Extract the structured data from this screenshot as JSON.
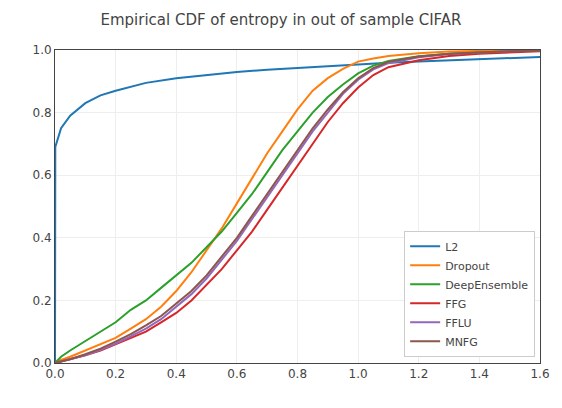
{
  "chart_data": {
    "type": "line",
    "title": "Empirical CDF of entropy in out of sample CIFAR",
    "xlim": [
      0.0,
      1.6
    ],
    "ylim": [
      0.0,
      1.0
    ],
    "xticks": [
      {
        "value": 0,
        "label": "0.0"
      },
      0.2,
      0.4,
      0.6,
      0.8,
      {
        "value": 1,
        "label": "1.0"
      },
      1.2,
      1.4,
      1.6
    ],
    "yticks": [
      {
        "value": 0,
        "label": "0.0"
      },
      0.2,
      0.4,
      0.6,
      0.8,
      {
        "value": 1,
        "label": "1.0"
      }
    ],
    "grid": true,
    "legend": "lower right",
    "series": [
      {
        "name": "L2",
        "x": [
          0.0,
          0.001,
          0.02,
          0.05,
          0.1,
          0.15,
          0.2,
          0.3,
          0.4,
          0.5,
          0.6,
          0.7,
          0.8,
          0.9,
          1.0,
          1.1,
          1.2,
          1.3,
          1.4,
          1.5,
          1.6
        ],
        "values": [
          0.0,
          0.69,
          0.75,
          0.79,
          0.83,
          0.855,
          0.87,
          0.895,
          0.91,
          0.92,
          0.93,
          0.937,
          0.943,
          0.949,
          0.954,
          0.959,
          0.963,
          0.967,
          0.971,
          0.975,
          0.978
        ]
      },
      {
        "name": "Dropout",
        "x": [
          0.0,
          0.02,
          0.05,
          0.1,
          0.15,
          0.2,
          0.25,
          0.3,
          0.35,
          0.4,
          0.45,
          0.5,
          0.55,
          0.6,
          0.65,
          0.7,
          0.75,
          0.8,
          0.85,
          0.9,
          0.95,
          1.0,
          1.05,
          1.1,
          1.2,
          1.3,
          1.4,
          1.5,
          1.6
        ],
        "values": [
          0.0,
          0.01,
          0.02,
          0.04,
          0.06,
          0.08,
          0.11,
          0.14,
          0.18,
          0.23,
          0.29,
          0.36,
          0.43,
          0.51,
          0.59,
          0.67,
          0.74,
          0.81,
          0.87,
          0.91,
          0.94,
          0.963,
          0.973,
          0.981,
          0.99,
          0.995,
          0.997,
          0.998,
          0.999
        ]
      },
      {
        "name": "DeepEnsemble",
        "x": [
          0.0,
          0.02,
          0.05,
          0.1,
          0.15,
          0.2,
          0.25,
          0.3,
          0.35,
          0.4,
          0.45,
          0.5,
          0.55,
          0.6,
          0.65,
          0.7,
          0.75,
          0.8,
          0.85,
          0.9,
          0.95,
          1.0,
          1.05,
          1.1,
          1.2,
          1.3,
          1.4,
          1.5,
          1.6
        ],
        "values": [
          0.0,
          0.02,
          0.04,
          0.07,
          0.1,
          0.13,
          0.17,
          0.2,
          0.24,
          0.28,
          0.32,
          0.37,
          0.42,
          0.48,
          0.54,
          0.61,
          0.68,
          0.74,
          0.8,
          0.85,
          0.89,
          0.925,
          0.95,
          0.965,
          0.98,
          0.988,
          0.993,
          0.996,
          0.998
        ]
      },
      {
        "name": "FFG",
        "x": [
          0.0,
          0.02,
          0.05,
          0.1,
          0.15,
          0.2,
          0.25,
          0.3,
          0.35,
          0.4,
          0.45,
          0.5,
          0.55,
          0.6,
          0.65,
          0.7,
          0.75,
          0.8,
          0.85,
          0.9,
          0.95,
          1.0,
          1.05,
          1.1,
          1.2,
          1.3,
          1.4,
          1.5,
          1.6
        ],
        "values": [
          0.0,
          0.005,
          0.012,
          0.025,
          0.04,
          0.06,
          0.08,
          0.1,
          0.13,
          0.16,
          0.2,
          0.25,
          0.3,
          0.36,
          0.42,
          0.49,
          0.56,
          0.63,
          0.7,
          0.77,
          0.83,
          0.88,
          0.92,
          0.945,
          0.967,
          0.981,
          0.988,
          0.993,
          0.996
        ]
      },
      {
        "name": "FFLU",
        "x": [
          0.0,
          0.02,
          0.05,
          0.1,
          0.15,
          0.2,
          0.25,
          0.3,
          0.35,
          0.4,
          0.45,
          0.5,
          0.55,
          0.6,
          0.65,
          0.7,
          0.75,
          0.8,
          0.85,
          0.9,
          0.95,
          1.0,
          1.05,
          1.1,
          1.2,
          1.3,
          1.4,
          1.5,
          1.6
        ],
        "values": [
          0.0,
          0.005,
          0.012,
          0.025,
          0.042,
          0.062,
          0.085,
          0.11,
          0.14,
          0.18,
          0.22,
          0.27,
          0.33,
          0.39,
          0.46,
          0.53,
          0.6,
          0.67,
          0.74,
          0.8,
          0.86,
          0.905,
          0.938,
          0.958,
          0.977,
          0.987,
          0.992,
          0.996,
          0.998
        ]
      },
      {
        "name": "MNFG",
        "x": [
          0.0,
          0.02,
          0.05,
          0.1,
          0.15,
          0.2,
          0.25,
          0.3,
          0.35,
          0.4,
          0.45,
          0.5,
          0.55,
          0.6,
          0.65,
          0.7,
          0.75,
          0.8,
          0.85,
          0.9,
          0.95,
          1.0,
          1.05,
          1.1,
          1.2,
          1.3,
          1.4,
          1.5,
          1.6
        ],
        "values": [
          0.0,
          0.005,
          0.012,
          0.028,
          0.046,
          0.068,
          0.092,
          0.12,
          0.15,
          0.19,
          0.23,
          0.28,
          0.34,
          0.4,
          0.47,
          0.54,
          0.61,
          0.68,
          0.75,
          0.81,
          0.865,
          0.91,
          0.942,
          0.962,
          0.979,
          0.988,
          0.993,
          0.996,
          0.998
        ]
      }
    ]
  }
}
